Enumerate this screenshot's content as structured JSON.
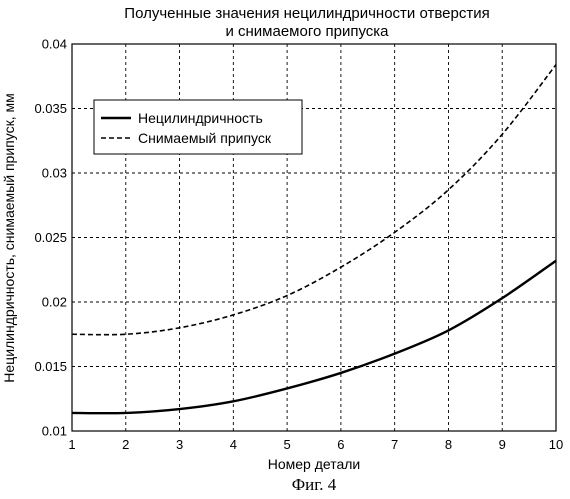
{
  "chart_data": {
    "type": "line",
    "title": [
      "Полученные значения нецилиндричности отверстия",
      "и снимаемого припуска"
    ],
    "xlabel": "Номер детали",
    "ylabel": "Нецилиндричность, снимаемый припуск, мм",
    "xlim": [
      1,
      10
    ],
    "ylim": [
      0.01,
      0.04
    ],
    "x_ticks": [
      "1",
      "2",
      "3",
      "4",
      "5",
      "6",
      "7",
      "8",
      "9",
      "10"
    ],
    "y_ticks": [
      "0.01",
      "0.015",
      "0.02",
      "0.025",
      "0.03",
      "0.035",
      "0.04"
    ],
    "grid": true,
    "legend_position": "top-left",
    "x": [
      1,
      2,
      3,
      4,
      5,
      6,
      7,
      8,
      9,
      10
    ],
    "series": [
      {
        "name": "Нецилиндричность",
        "style": "solid",
        "values": [
          0.0114,
          0.0114,
          0.0117,
          0.0123,
          0.0133,
          0.0145,
          0.016,
          0.0178,
          0.0203,
          0.0232
        ]
      },
      {
        "name": "Снимаемый припуск",
        "style": "dashed",
        "values": [
          0.0175,
          0.0175,
          0.018,
          0.019,
          0.0205,
          0.0227,
          0.0254,
          0.0287,
          0.033,
          0.0384
        ]
      }
    ]
  },
  "caption": "Фиг. 4"
}
